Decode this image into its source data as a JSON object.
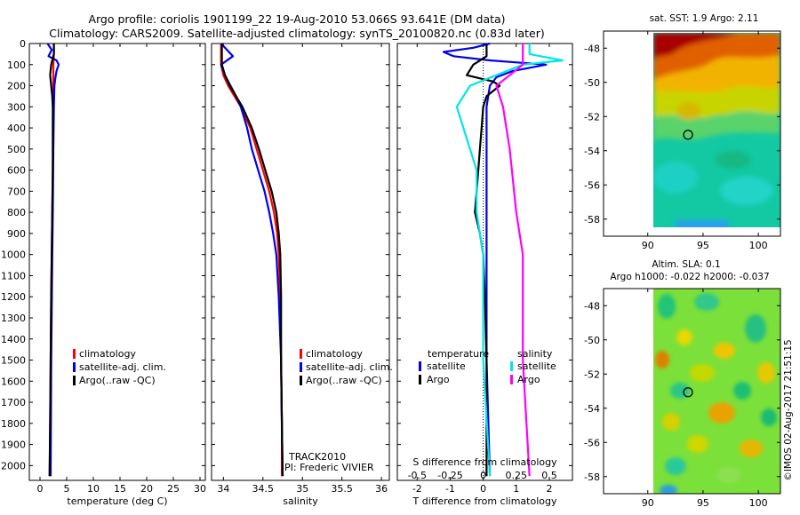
{
  "title_line1": "Argo profile: coriolis 1901199_22 19-Aug-2010 53.066S 93.641E (DM data)",
  "title_line2": "Climatology: CARS2009. Satellite-adjusted climatology: synTS_20100820.nc (0.83d later)",
  "colors": {
    "climatology": "#ff0000",
    "satellite": "#0000ee",
    "argo": "#000000",
    "sat_salinity": "#00e5e5",
    "argo_salinity": "#ff00ff"
  },
  "chart_data": [
    {
      "type": "line",
      "id": "temperature",
      "xlabel": "temperature (deg C)",
      "ylabel": "",
      "xlim": [
        -2,
        31
      ],
      "ylim": [
        2070,
        0
      ],
      "xticks": [
        "0",
        "5",
        "10",
        "15",
        "20",
        "25",
        "30"
      ],
      "yticks": [
        "0",
        "100",
        "200",
        "300",
        "400",
        "500",
        "600",
        "700",
        "800",
        "900",
        "1000",
        "1100",
        "1200",
        "1300",
        "1400",
        "1500",
        "1600",
        "1700",
        "1800",
        "1900",
        "2000"
      ],
      "legend": [
        "climatology",
        "satellite-adj. clim.",
        "Argo(..raw -QC)"
      ],
      "series": [
        {
          "key": "climatology",
          "depth": [
            0,
            50,
            100,
            150,
            200,
            300,
            400,
            600,
            800,
            1000,
            1200,
            1500,
            1800,
            2050
          ],
          "values": [
            2.6,
            2.6,
            2.5,
            2.5,
            2.5,
            2.5,
            2.5,
            2.4,
            2.3,
            2.2,
            2.1,
            2.0,
            1.9,
            1.8
          ]
        },
        {
          "key": "satellite",
          "depth": [
            0,
            30,
            60,
            80,
            100,
            130,
            160,
            200,
            300,
            500,
            800,
            1000,
            1500,
            2050
          ],
          "values": [
            1.4,
            2.2,
            1.6,
            3.1,
            3.5,
            3.1,
            2.9,
            2.7,
            2.6,
            2.5,
            2.4,
            2.3,
            2.1,
            2.0
          ]
        },
        {
          "key": "argo",
          "depth": [
            0,
            50,
            100,
            150,
            200,
            250,
            300,
            400,
            600,
            800,
            1000,
            1200,
            1500,
            1800,
            2050
          ],
          "values": [
            2.6,
            2.6,
            2.1,
            1.9,
            2.1,
            2.3,
            2.4,
            2.4,
            2.4,
            2.3,
            2.2,
            2.1,
            2.0,
            1.9,
            1.8
          ]
        }
      ]
    },
    {
      "type": "line",
      "id": "salinity",
      "xlabel": "salinity",
      "ylabel": "",
      "xlim": [
        33.85,
        36.1
      ],
      "ylim": [
        2070,
        0
      ],
      "xticks": [
        "34",
        "34.5",
        "35",
        "35.5",
        "36"
      ],
      "legend": [
        "climatology",
        "satellite-adj. clim.",
        "Argo(..raw -QC)"
      ],
      "annotations": [
        "TRACK2010",
        "PI: Frederic VIVIER"
      ],
      "series": [
        {
          "key": "climatology",
          "depth": [
            0,
            100,
            150,
            200,
            250,
            300,
            400,
            500,
            600,
            700,
            800,
            900,
            1000,
            1200,
            1500,
            1800,
            2050
          ],
          "values": [
            33.97,
            33.97,
            34.0,
            34.06,
            34.14,
            34.22,
            34.34,
            34.42,
            34.5,
            34.58,
            34.64,
            34.68,
            34.7,
            34.72,
            34.73,
            34.74,
            34.74
          ]
        },
        {
          "key": "satellite",
          "depth": [
            0,
            60,
            100,
            150,
            200,
            250,
            300,
            400,
            500,
            600,
            700,
            800,
            900,
            1000,
            1200,
            1500,
            1800,
            2050
          ],
          "values": [
            33.97,
            34.12,
            33.97,
            34.02,
            34.09,
            34.16,
            34.22,
            34.3,
            34.36,
            34.44,
            34.52,
            34.58,
            34.63,
            34.67,
            34.7,
            34.73,
            34.74,
            34.75
          ]
        },
        {
          "key": "argo",
          "depth": [
            0,
            100,
            150,
            200,
            250,
            300,
            400,
            500,
            600,
            700,
            800,
            900,
            1000,
            1200,
            1500,
            1800,
            2050
          ],
          "values": [
            33.98,
            33.98,
            34.02,
            34.08,
            34.16,
            34.24,
            34.36,
            34.45,
            34.53,
            34.61,
            34.67,
            34.7,
            34.72,
            34.73,
            34.73,
            34.74,
            34.75
          ]
        }
      ]
    },
    {
      "type": "line",
      "id": "difference",
      "xlabel": "T difference from climatology",
      "xlabel2": "S difference from climatology",
      "xlim": [
        -2.6,
        2.7
      ],
      "ylim": [
        2070,
        0
      ],
      "xticks": [
        "-2",
        "-1",
        "0",
        "1",
        "2"
      ],
      "xticks_top": [
        "-0.5",
        "-0.25",
        "0",
        "0.25",
        "0.5"
      ],
      "legend_temperature": "temperature",
      "legend_salinity": "salinity",
      "legend_satellite": "satellite",
      "legend_argo": "Argo",
      "series": [
        {
          "key": "satellite",
          "depth": [
            0,
            20,
            40,
            60,
            80,
            100,
            130,
            160,
            200,
            300,
            500,
            800,
            1000,
            1500,
            2050
          ],
          "values": [
            0.2,
            -0.3,
            -1.2,
            -0.9,
            0.2,
            1.9,
            0.9,
            0.4,
            0.2,
            0.1,
            0.1,
            0.1,
            0.1,
            0.1,
            0.2
          ]
        },
        {
          "key": "argo",
          "depth": [
            0,
            60,
            100,
            150,
            180,
            200,
            250,
            300,
            400,
            500,
            600,
            700,
            800,
            900,
            1000,
            1200,
            1500,
            1800,
            2050
          ],
          "values": [
            0.1,
            0.1,
            -0.3,
            -0.5,
            0.3,
            0.5,
            0.1,
            0,
            -0.05,
            -0.1,
            -0.15,
            -0.2,
            -0.25,
            -0.1,
            0,
            0.05,
            0.1,
            0.1,
            0.1
          ]
        },
        {
          "key": "sat_salinity",
          "depth": [
            0,
            50,
            80,
            100,
            150,
            200,
            300,
            400,
            500,
            600,
            800,
            1000,
            1500,
            2050
          ],
          "values": [
            0.35,
            0.35,
            0.6,
            0.3,
            0.1,
            -0.1,
            -0.2,
            -0.15,
            -0.1,
            -0.05,
            -0.05,
            0,
            0,
            0.05
          ]
        },
        {
          "key": "argo_salinity",
          "depth": [
            0,
            100,
            150,
            200,
            300,
            500,
            800,
            1000,
            1500,
            2050
          ],
          "values": [
            0.3,
            0.3,
            0.2,
            0.1,
            0.15,
            0.2,
            0.25,
            0.3,
            0.3,
            0.35
          ]
        }
      ]
    },
    {
      "type": "heatmap",
      "id": "sst_map",
      "title": "sat. SST: 1.9 Argo: 2.11",
      "xlim": [
        86,
        102
      ],
      "ylim": [
        -59,
        -47
      ],
      "xticks": [
        "90",
        "95",
        "100"
      ],
      "yticks": [
        "-48",
        "-50",
        "-52",
        "-54",
        "-56",
        "-58"
      ],
      "marker": {
        "lon": 93.641,
        "lat": -53.066
      }
    },
    {
      "type": "heatmap",
      "id": "sla_map",
      "title": "Altim. SLA: 0.1",
      "subtitle": "Argo h1000: -0.022 h2000: -0.037",
      "xlim": [
        86,
        102
      ],
      "ylim": [
        -59,
        -47
      ],
      "xticks": [
        "90",
        "95",
        "100"
      ],
      "yticks": [
        "-48",
        "-50",
        "-52",
        "-54",
        "-56",
        "-58"
      ],
      "marker": {
        "lon": 93.641,
        "lat": -53.066
      }
    }
  ],
  "footer_credit": "©IMOS 02-Aug-2017 21:51:15"
}
